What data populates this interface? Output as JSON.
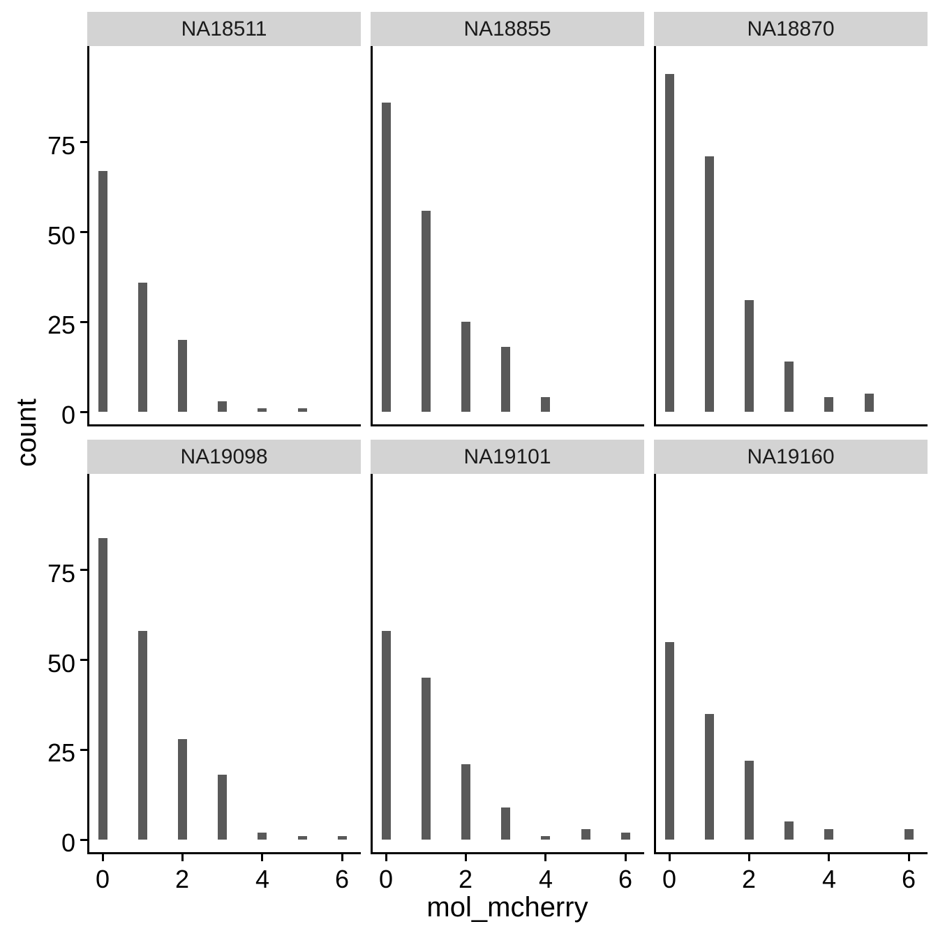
{
  "figure": {
    "ylabel": "count",
    "xlabel": "mol_mcherry"
  },
  "chart_data": {
    "type": "bar",
    "subtype": "faceted-histogram",
    "title": "",
    "xlabel": "mol_mcherry",
    "ylabel": "count",
    "x_ticks": [
      0,
      2,
      4,
      6
    ],
    "y_ticks": [
      0,
      25,
      50,
      75
    ],
    "xlim": [
      -0.5,
      6.7
    ],
    "ylim": [
      0,
      101
    ],
    "grid": false,
    "legend": "none",
    "facet_layout": {
      "rows": 2,
      "cols": 3
    },
    "facets": [
      {
        "label": "NA18511",
        "bars": [
          {
            "x": 0,
            "count": 67
          },
          {
            "x": 1,
            "count": 36
          },
          {
            "x": 2,
            "count": 20
          },
          {
            "x": 3,
            "count": 3
          },
          {
            "x": 4,
            "count": 1
          },
          {
            "x": 5,
            "count": 1
          }
        ]
      },
      {
        "label": "NA18855",
        "bars": [
          {
            "x": 0,
            "count": 86
          },
          {
            "x": 1,
            "count": 56
          },
          {
            "x": 2,
            "count": 25
          },
          {
            "x": 3,
            "count": 18
          },
          {
            "x": 4,
            "count": 4
          }
        ]
      },
      {
        "label": "NA18870",
        "bars": [
          {
            "x": 0,
            "count": 94
          },
          {
            "x": 1,
            "count": 71
          },
          {
            "x": 2,
            "count": 31
          },
          {
            "x": 3,
            "count": 14
          },
          {
            "x": 4,
            "count": 4
          },
          {
            "x": 5,
            "count": 5
          }
        ]
      },
      {
        "label": "NA19098",
        "bars": [
          {
            "x": 0,
            "count": 84
          },
          {
            "x": 1,
            "count": 58
          },
          {
            "x": 2,
            "count": 28
          },
          {
            "x": 3,
            "count": 18
          },
          {
            "x": 4,
            "count": 2
          },
          {
            "x": 5,
            "count": 1
          },
          {
            "x": 6,
            "count": 1
          }
        ]
      },
      {
        "label": "NA19101",
        "bars": [
          {
            "x": 0,
            "count": 58
          },
          {
            "x": 1,
            "count": 45
          },
          {
            "x": 2,
            "count": 21
          },
          {
            "x": 3,
            "count": 9
          },
          {
            "x": 4,
            "count": 1
          },
          {
            "x": 5,
            "count": 3
          },
          {
            "x": 6,
            "count": 2
          }
        ]
      },
      {
        "label": "NA19160",
        "bars": [
          {
            "x": 0,
            "count": 55
          },
          {
            "x": 1,
            "count": 35
          },
          {
            "x": 2,
            "count": 22
          },
          {
            "x": 3,
            "count": 5
          },
          {
            "x": 4,
            "count": 3
          },
          {
            "x": 6,
            "count": 3
          }
        ]
      }
    ],
    "colors": {
      "bar_fill": "#595959",
      "strip_background": "#D3D3D3",
      "axis_line": "#000000",
      "text": "#000000",
      "background": "#FFFFFF"
    }
  }
}
